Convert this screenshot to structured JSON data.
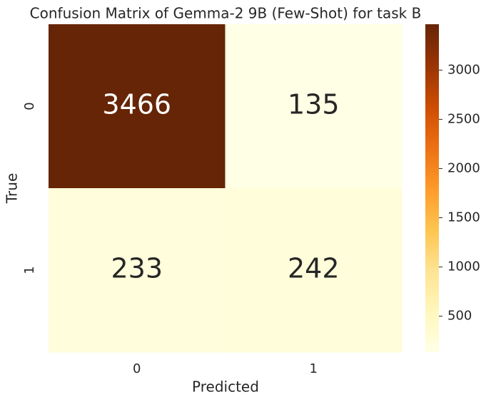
{
  "chart_data": {
    "type": "heatmap",
    "title": "Confusion Matrix of Gemma-2 9B (Few-Shot) for task B",
    "xlabel": "Predicted",
    "ylabel": "True",
    "x_categories": [
      "0",
      "1"
    ],
    "y_categories": [
      "0",
      "1"
    ],
    "values": [
      [
        3466,
        135
      ],
      [
        233,
        242
      ]
    ],
    "colormap": [
      "#ffffe5",
      "#fff7bc",
      "#fee391",
      "#fec44f",
      "#fe9929",
      "#ec7014",
      "#cc4c02",
      "#993404",
      "#662506"
    ],
    "colorbar_lim": [
      135,
      3466
    ],
    "colorbar_ticks": [
      500,
      1000,
      1500,
      2000,
      2500,
      3000
    ]
  }
}
